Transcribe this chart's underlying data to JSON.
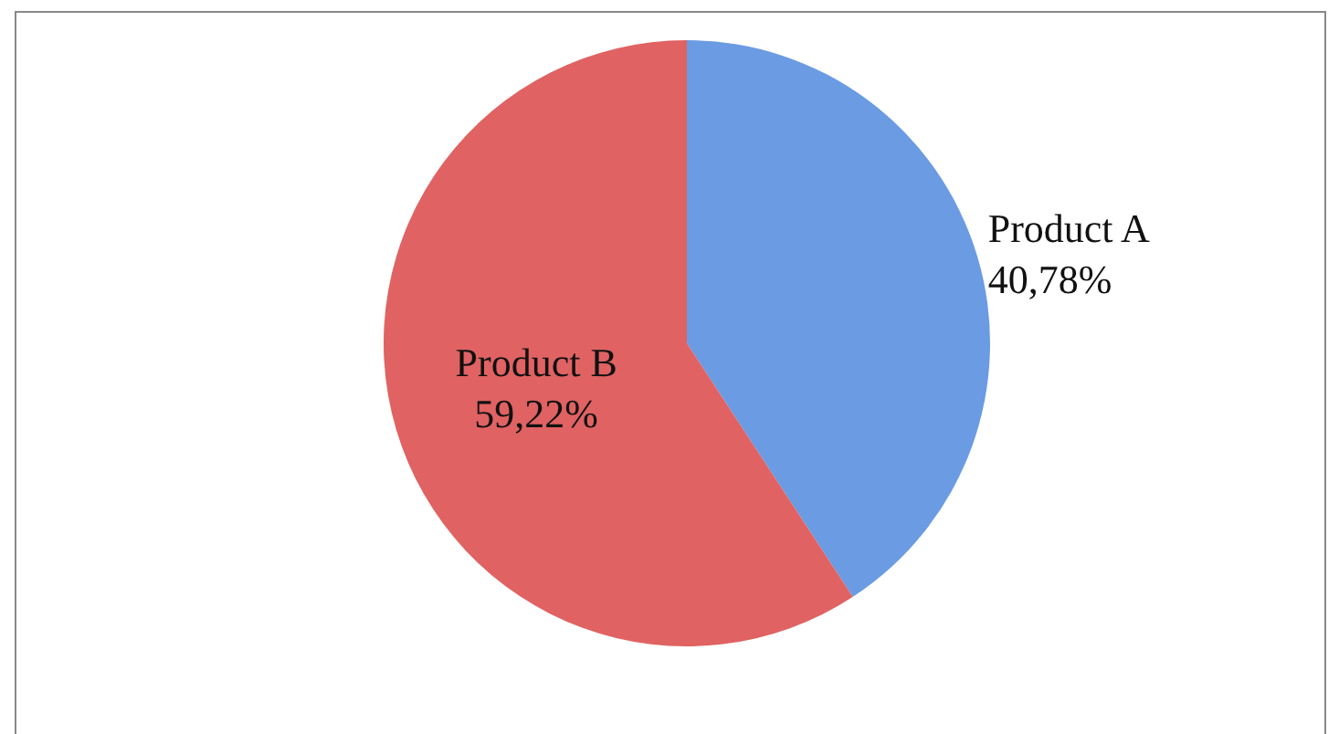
{
  "chart_data": {
    "type": "pie",
    "categories": [
      "Product A",
      "Product B"
    ],
    "values": [
      40.78,
      59.22
    ],
    "colors": [
      "#6a9be3",
      "#e06262"
    ],
    "value_labels": [
      "40,78%",
      "59,22%"
    ],
    "legend": false
  }
}
